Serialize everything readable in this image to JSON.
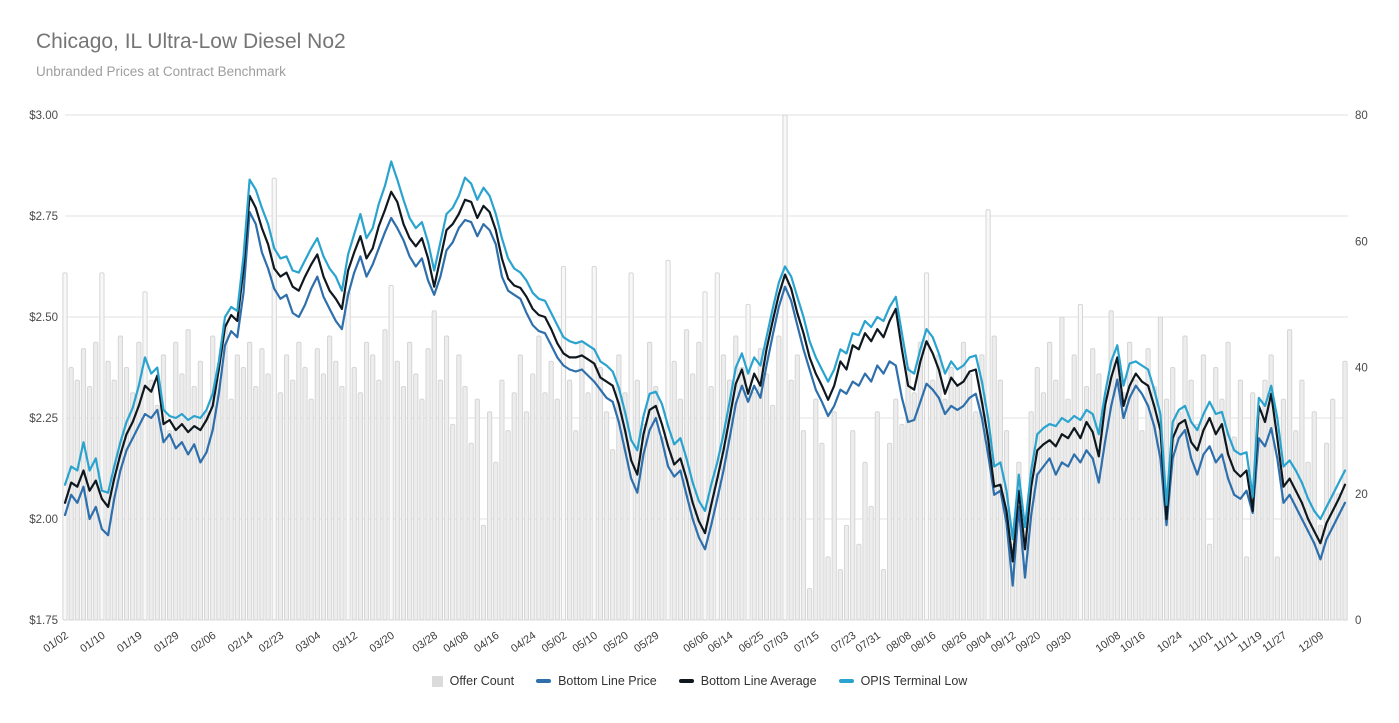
{
  "header": {
    "title": "Chicago, IL Ultra-Low Diesel No2",
    "subtitle": "Unbranded Prices at Contract Benchmark"
  },
  "colors": {
    "bottom_line_price": "#2e6fac",
    "bottom_line_average": "#10181f",
    "opis_terminal_low": "#2aa3cf",
    "offer_count_fill": "#ededed",
    "offer_count_fill_bright": "#f8f8f8",
    "offer_count_stroke": "#d6d6d6",
    "offer_count_swatch": "#dbdbdb",
    "gridline": "#e1e1e1",
    "axis_text": "#4a4a4a",
    "x_label_text": "#3c3c3c"
  },
  "legend": {
    "items": [
      {
        "id": "offer-count",
        "label": "Offer Count",
        "swatch": "square",
        "color": "#dbdbdb"
      },
      {
        "id": "bottom-line-price",
        "label": "Bottom Line Price",
        "swatch": "dash",
        "color": "#2e6fac"
      },
      {
        "id": "bottom-line-average",
        "label": "Bottom Line Average",
        "swatch": "dash",
        "color": "#10181f"
      },
      {
        "id": "opis-terminal-low",
        "label": "OPIS Terminal Low",
        "swatch": "dash",
        "color": "#2aa3cf"
      }
    ]
  },
  "chart_data": {
    "type": "combo-line-bar",
    "title": "Chicago, IL Ultra-Low Diesel No2",
    "subtitle": "Unbranded Prices at Contract Benchmark",
    "grid": "horizontal-only",
    "legend_position": "bottom-center",
    "y_axis_left": {
      "min": 1.75,
      "max": 3.0,
      "tick_values": [
        3.0,
        2.75,
        2.5,
        2.25,
        2.0,
        1.75
      ],
      "tick_labels": [
        "$3.00",
        "$2.75",
        "$2.50",
        "$2.25",
        "$2.00",
        "$1.75"
      ]
    },
    "y_axis_right": {
      "min": 0,
      "max": 80,
      "tick_values": [
        80,
        60,
        40,
        20,
        0
      ],
      "tick_labels": [
        "80",
        "60",
        "40",
        "20",
        "0"
      ]
    },
    "x_labels": [
      {
        "label": "01/02",
        "i": 0
      },
      {
        "label": "01/10",
        "i": 6
      },
      {
        "label": "01/19",
        "i": 12
      },
      {
        "label": "01/29",
        "i": 18
      },
      {
        "label": "02/06",
        "i": 24
      },
      {
        "label": "02/14",
        "i": 30
      },
      {
        "label": "02/23",
        "i": 35
      },
      {
        "label": "03/04",
        "i": 41
      },
      {
        "label": "03/12",
        "i": 47
      },
      {
        "label": "03/20",
        "i": 53
      },
      {
        "label": "03/28",
        "i": 60
      },
      {
        "label": "04/08",
        "i": 65
      },
      {
        "label": "04/16",
        "i": 70
      },
      {
        "label": "04/24",
        "i": 76
      },
      {
        "label": "05/02",
        "i": 81
      },
      {
        "label": "05/10",
        "i": 86
      },
      {
        "label": "05/20",
        "i": 91
      },
      {
        "label": "05/29",
        "i": 96
      },
      {
        "label": "06/06",
        "i": 104
      },
      {
        "label": "06/14",
        "i": 108
      },
      {
        "label": "06/25",
        "i": 113
      },
      {
        "label": "07/03",
        "i": 117
      },
      {
        "label": "07/15",
        "i": 122
      },
      {
        "label": "07/23",
        "i": 128
      },
      {
        "label": "07/31",
        "i": 132
      },
      {
        "label": "08/08",
        "i": 137
      },
      {
        "label": "08/16",
        "i": 141
      },
      {
        "label": "08/26",
        "i": 146
      },
      {
        "label": "09/04",
        "i": 150
      },
      {
        "label": "09/12",
        "i": 154
      },
      {
        "label": "09/20",
        "i": 158
      },
      {
        "label": "09/30",
        "i": 163
      },
      {
        "label": "10/08",
        "i": 171
      },
      {
        "label": "10/16",
        "i": 175
      },
      {
        "label": "10/24",
        "i": 181
      },
      {
        "label": "11/01",
        "i": 186
      },
      {
        "label": "11/11",
        "i": 190
      },
      {
        "label": "11/19",
        "i": 194
      },
      {
        "label": "11/27",
        "i": 198
      },
      {
        "label": "12/09",
        "i": 204
      }
    ],
    "series": [
      {
        "name": "Offer Count",
        "type": "bar",
        "axis": "right",
        "values": [
          55,
          40,
          38,
          43,
          37,
          44,
          55,
          41,
          38,
          45,
          40,
          36,
          44,
          52,
          38,
          34,
          42,
          30,
          44,
          39,
          46,
          37,
          41,
          33,
          45,
          38,
          47,
          35,
          42,
          40,
          44,
          37,
          43,
          39,
          70,
          36,
          42,
          38,
          44,
          40,
          35,
          43,
          39,
          45,
          41,
          37,
          52,
          40,
          36,
          44,
          42,
          38,
          46,
          53,
          41,
          37,
          44,
          39,
          35,
          43,
          49,
          38,
          45,
          31,
          42,
          37,
          28,
          35,
          15,
          33,
          25,
          38,
          30,
          36,
          42,
          33,
          39,
          45,
          36,
          41,
          35,
          56,
          38,
          30,
          44,
          36,
          56,
          40,
          33,
          27,
          42,
          36,
          55,
          38,
          31,
          44,
          37,
          29,
          57,
          41,
          35,
          46,
          39,
          44,
          52,
          37,
          55,
          42,
          38,
          45,
          40,
          50,
          36,
          43,
          39,
          34,
          45,
          80,
          38,
          42,
          30,
          5,
          35,
          28,
          10,
          33,
          8,
          15,
          30,
          12,
          25,
          18,
          33,
          8,
          28,
          35,
          31,
          40,
          36,
          44,
          55,
          38,
          42,
          35,
          40,
          37,
          44,
          39,
          33,
          42,
          65,
          45,
          38,
          30,
          12,
          25,
          15,
          33,
          40,
          36,
          44,
          38,
          48,
          35,
          42,
          50,
          37,
          43,
          39,
          34,
          49,
          41,
          36,
          44,
          38,
          30,
          43,
          37,
          48,
          35,
          40,
          33,
          45,
          38,
          31,
          42,
          12,
          40,
          35,
          44,
          29,
          38,
          10,
          36,
          32,
          38,
          42,
          10,
          35,
          46,
          30,
          38,
          25,
          33,
          15,
          28,
          35,
          20,
          41
        ]
      },
      {
        "name": "Bottom Line Price",
        "type": "line",
        "axis": "left",
        "color": "#2e6fac",
        "values": [
          2.01,
          2.06,
          2.04,
          2.08,
          2.0,
          2.03,
          1.975,
          1.96,
          2.05,
          2.12,
          2.17,
          2.2,
          2.23,
          2.26,
          2.25,
          2.27,
          2.19,
          2.21,
          2.175,
          2.19,
          2.16,
          2.185,
          2.14,
          2.165,
          2.22,
          2.31,
          2.43,
          2.465,
          2.45,
          2.56,
          2.76,
          2.73,
          2.66,
          2.62,
          2.57,
          2.545,
          2.555,
          2.51,
          2.5,
          2.53,
          2.57,
          2.6,
          2.55,
          2.52,
          2.49,
          2.47,
          2.555,
          2.61,
          2.65,
          2.6,
          2.63,
          2.67,
          2.71,
          2.745,
          2.72,
          2.69,
          2.65,
          2.625,
          2.645,
          2.59,
          2.555,
          2.6,
          2.665,
          2.685,
          2.72,
          2.74,
          2.735,
          2.7,
          2.73,
          2.715,
          2.68,
          2.6,
          2.565,
          2.555,
          2.545,
          2.51,
          2.48,
          2.465,
          2.46,
          2.43,
          2.4,
          2.38,
          2.37,
          2.365,
          2.37,
          2.355,
          2.34,
          2.32,
          2.3,
          2.29,
          2.24,
          2.17,
          2.1,
          2.065,
          2.16,
          2.22,
          2.25,
          2.195,
          2.13,
          2.105,
          2.12,
          2.06,
          2.0,
          1.955,
          1.925,
          1.985,
          2.05,
          2.12,
          2.2,
          2.285,
          2.33,
          2.29,
          2.33,
          2.3,
          2.38,
          2.455,
          2.525,
          2.575,
          2.54,
          2.48,
          2.42,
          2.37,
          2.32,
          2.29,
          2.255,
          2.28,
          2.32,
          2.31,
          2.34,
          2.33,
          2.36,
          2.34,
          2.38,
          2.36,
          2.39,
          2.38,
          2.3,
          2.24,
          2.245,
          2.29,
          2.335,
          2.32,
          2.3,
          2.26,
          2.28,
          2.27,
          2.28,
          2.3,
          2.31,
          2.25,
          2.16,
          2.06,
          2.07,
          1.99,
          1.835,
          2.03,
          1.855,
          2.01,
          2.11,
          2.13,
          2.15,
          2.11,
          2.14,
          2.13,
          2.16,
          2.14,
          2.17,
          2.15,
          2.09,
          2.19,
          2.28,
          2.345,
          2.25,
          2.3,
          2.33,
          2.31,
          2.28,
          2.23,
          2.15,
          1.985,
          2.15,
          2.2,
          2.22,
          2.15,
          2.11,
          2.16,
          2.18,
          2.14,
          2.16,
          2.1,
          2.06,
          2.05,
          2.07,
          2.015,
          2.2,
          2.18,
          2.225,
          2.15,
          2.04,
          2.06,
          2.03,
          2.0,
          1.97,
          1.94,
          1.9,
          1.95,
          1.98,
          2.01,
          2.04
        ]
      },
      {
        "name": "Bottom Line Average",
        "type": "line",
        "axis": "left",
        "color": "#10181f",
        "values": [
          2.04,
          2.09,
          2.08,
          2.12,
          2.07,
          2.095,
          2.05,
          2.03,
          2.1,
          2.16,
          2.21,
          2.24,
          2.28,
          2.33,
          2.315,
          2.355,
          2.235,
          2.245,
          2.22,
          2.235,
          2.215,
          2.23,
          2.22,
          2.245,
          2.28,
          2.37,
          2.475,
          2.505,
          2.49,
          2.62,
          2.8,
          2.77,
          2.72,
          2.68,
          2.62,
          2.6,
          2.61,
          2.575,
          2.565,
          2.6,
          2.63,
          2.655,
          2.6,
          2.565,
          2.545,
          2.52,
          2.615,
          2.66,
          2.7,
          2.645,
          2.67,
          2.725,
          2.765,
          2.81,
          2.785,
          2.73,
          2.695,
          2.675,
          2.695,
          2.645,
          2.575,
          2.645,
          2.715,
          2.73,
          2.755,
          2.79,
          2.785,
          2.745,
          2.775,
          2.76,
          2.715,
          2.645,
          2.595,
          2.578,
          2.572,
          2.55,
          2.52,
          2.505,
          2.5,
          2.47,
          2.435,
          2.41,
          2.4,
          2.4,
          2.405,
          2.395,
          2.385,
          2.35,
          2.34,
          2.33,
          2.285,
          2.22,
          2.145,
          2.11,
          2.21,
          2.27,
          2.28,
          2.235,
          2.18,
          2.135,
          2.15,
          2.1,
          2.04,
          1.995,
          1.965,
          2.035,
          2.1,
          2.17,
          2.25,
          2.335,
          2.37,
          2.31,
          2.36,
          2.33,
          2.42,
          2.49,
          2.555,
          2.605,
          2.57,
          2.51,
          2.46,
          2.4,
          2.36,
          2.33,
          2.295,
          2.33,
          2.39,
          2.37,
          2.43,
          2.42,
          2.46,
          2.44,
          2.47,
          2.45,
          2.49,
          2.52,
          2.42,
          2.33,
          2.32,
          2.39,
          2.44,
          2.41,
          2.37,
          2.31,
          2.35,
          2.33,
          2.34,
          2.365,
          2.37,
          2.29,
          2.2,
          2.08,
          2.085,
          2.02,
          1.895,
          2.07,
          1.925,
          2.08,
          2.17,
          2.185,
          2.195,
          2.18,
          2.21,
          2.2,
          2.225,
          2.2,
          2.24,
          2.215,
          2.155,
          2.28,
          2.35,
          2.4,
          2.28,
          2.33,
          2.36,
          2.34,
          2.33,
          2.28,
          2.22,
          2.0,
          2.2,
          2.235,
          2.245,
          2.19,
          2.17,
          2.22,
          2.25,
          2.21,
          2.235,
          2.16,
          2.12,
          2.105,
          2.12,
          2.02,
          2.28,
          2.24,
          2.31,
          2.2,
          2.08,
          2.1,
          2.07,
          2.04,
          2.0,
          1.97,
          1.94,
          1.99,
          2.02,
          2.05,
          2.085
        ]
      },
      {
        "name": "OPIS Terminal Low",
        "type": "line",
        "axis": "left",
        "color": "#2aa3cf",
        "values": [
          2.085,
          2.13,
          2.12,
          2.19,
          2.12,
          2.15,
          2.07,
          2.065,
          2.13,
          2.19,
          2.24,
          2.275,
          2.33,
          2.4,
          2.36,
          2.375,
          2.27,
          2.255,
          2.25,
          2.26,
          2.245,
          2.255,
          2.25,
          2.27,
          2.31,
          2.39,
          2.5,
          2.525,
          2.515,
          2.65,
          2.84,
          2.815,
          2.77,
          2.73,
          2.67,
          2.645,
          2.65,
          2.615,
          2.61,
          2.64,
          2.67,
          2.695,
          2.65,
          2.62,
          2.6,
          2.565,
          2.655,
          2.705,
          2.755,
          2.695,
          2.72,
          2.78,
          2.825,
          2.885,
          2.84,
          2.79,
          2.745,
          2.72,
          2.735,
          2.685,
          2.615,
          2.685,
          2.755,
          2.77,
          2.8,
          2.845,
          2.83,
          2.79,
          2.82,
          2.8,
          2.755,
          2.695,
          2.645,
          2.62,
          2.61,
          2.59,
          2.56,
          2.545,
          2.54,
          2.51,
          2.48,
          2.45,
          2.44,
          2.435,
          2.44,
          2.43,
          2.42,
          2.39,
          2.38,
          2.365,
          2.325,
          2.265,
          2.195,
          2.17,
          2.255,
          2.31,
          2.315,
          2.285,
          2.23,
          2.185,
          2.2,
          2.15,
          2.09,
          2.045,
          2.02,
          2.085,
          2.14,
          2.21,
          2.29,
          2.375,
          2.41,
          2.36,
          2.4,
          2.38,
          2.45,
          2.52,
          2.585,
          2.625,
          2.6,
          2.55,
          2.5,
          2.44,
          2.4,
          2.37,
          2.34,
          2.37,
          2.42,
          2.41,
          2.46,
          2.455,
          2.49,
          2.475,
          2.5,
          2.49,
          2.525,
          2.55,
          2.46,
          2.37,
          2.36,
          2.42,
          2.47,
          2.45,
          2.41,
          2.36,
          2.39,
          2.37,
          2.38,
          2.4,
          2.405,
          2.34,
          2.25,
          2.13,
          2.14,
          2.07,
          1.95,
          2.11,
          1.98,
          2.12,
          2.21,
          2.225,
          2.235,
          2.23,
          2.25,
          2.24,
          2.255,
          2.245,
          2.27,
          2.26,
          2.21,
          2.31,
          2.39,
          2.43,
          2.33,
          2.385,
          2.39,
          2.38,
          2.37,
          2.32,
          2.26,
          2.035,
          2.24,
          2.27,
          2.28,
          2.24,
          2.22,
          2.26,
          2.29,
          2.26,
          2.265,
          2.21,
          2.17,
          2.16,
          2.165,
          2.055,
          2.3,
          2.28,
          2.33,
          2.25,
          2.13,
          2.145,
          2.12,
          2.09,
          2.05,
          2.02,
          2.0,
          2.03,
          2.06,
          2.09,
          2.12
        ]
      }
    ]
  }
}
